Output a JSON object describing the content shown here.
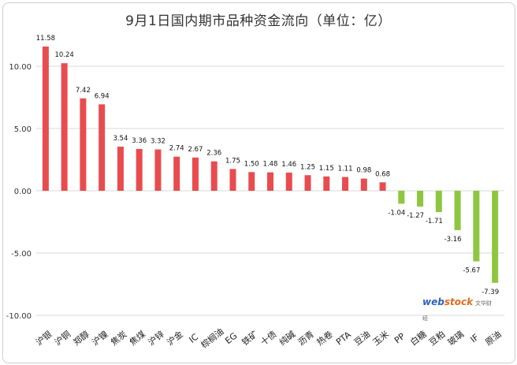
{
  "chart_data": {
    "type": "bar",
    "title": "9月1日国内期市品种资金流向（单位：亿）",
    "categories": [
      "沪银",
      "沪铜",
      "郑醇",
      "沪镍",
      "焦炭",
      "焦煤",
      "沪锌",
      "沪金",
      "IC",
      "棕榈油",
      "EG",
      "铁矿",
      "十债",
      "纯碱",
      "沥青",
      "热卷",
      "PTA",
      "豆油",
      "玉米",
      "PP",
      "白糖",
      "豆粕",
      "玻璃",
      "IF",
      "原油"
    ],
    "values": [
      11.58,
      10.24,
      7.42,
      6.94,
      3.54,
      3.36,
      3.32,
      2.74,
      2.67,
      2.36,
      1.75,
      1.5,
      1.48,
      1.46,
      1.25,
      1.15,
      1.11,
      0.98,
      0.68,
      -1.04,
      -1.27,
      -1.71,
      -3.16,
      -5.67,
      -7.39
    ],
    "value_labels": [
      "11.58",
      "10.24",
      "7.42",
      "6.94",
      "3.54",
      "3.36",
      "3.32",
      "2.74",
      "2.67",
      "2.36",
      "1.75",
      "1.50",
      "1.48",
      "1.46",
      "1.25",
      "1.15",
      "1.11",
      "0.98",
      "0.68",
      "-1.04",
      "-1.27",
      "-1.71",
      "-3.16",
      "-5.67",
      "-7.39"
    ],
    "ylim": [
      -10,
      12.5
    ],
    "yticks": [
      "10.00",
      "5.00",
      "0.00",
      "-5.00",
      "-10.00"
    ],
    "ytick_values": [
      10,
      5,
      0,
      -5,
      -10
    ],
    "grid": true,
    "colors": {
      "positive": "#e84c4f",
      "negative": "#8dc63f"
    }
  },
  "watermark": {
    "brand_a": "web",
    "brand_b": "stock",
    "brand_cn": "文华财经"
  }
}
